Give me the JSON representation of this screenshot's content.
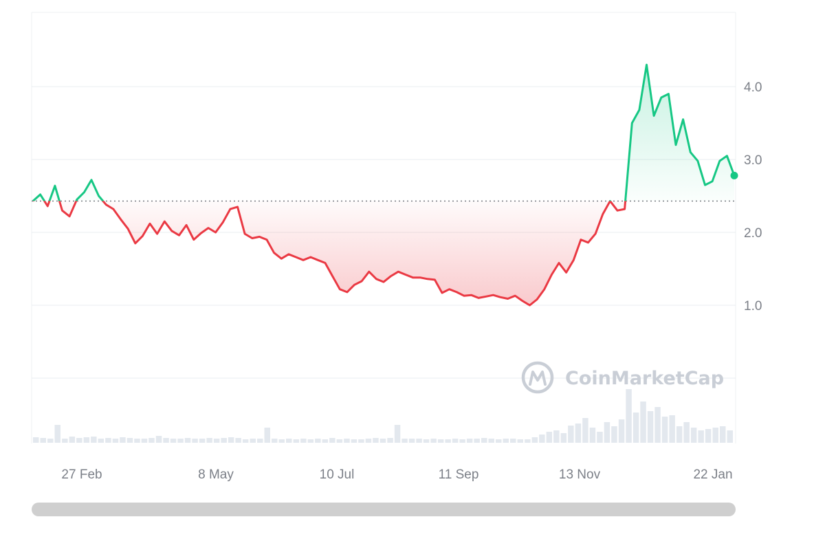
{
  "chart_data": {
    "type": "area",
    "title": "",
    "xlabel": "",
    "ylabel": "",
    "ylim": [
      0,
      5.0
    ],
    "y_ticks": [
      "1.0",
      "2.0",
      "3.0",
      "4.0"
    ],
    "x_ticks": [
      "27 Feb",
      "8 May",
      "10 Jul",
      "11 Sep",
      "13 Nov",
      "22 Jan"
    ],
    "baseline": 2.43,
    "grid": true,
    "legend": "none",
    "colors": {
      "above": "#16c784",
      "below": "#ea3943",
      "baseline": "#6b6f76",
      "volume": "#e3e8ee"
    },
    "series": [
      {
        "values": [
          2.43,
          2.52,
          2.36,
          2.64,
          2.3,
          2.22,
          2.45,
          2.55,
          2.72,
          2.5,
          2.38,
          2.32,
          2.18,
          2.05,
          1.85,
          1.95,
          2.12,
          1.98,
          2.15,
          2.02,
          1.96,
          2.1,
          1.9,
          1.99,
          2.06,
          2.0,
          2.14,
          2.32,
          2.35,
          1.98,
          1.92,
          1.94,
          1.9,
          1.72,
          1.64,
          1.7,
          1.66,
          1.62,
          1.66,
          1.62,
          1.58,
          1.4,
          1.22,
          1.18,
          1.28,
          1.33,
          1.46,
          1.36,
          1.32,
          1.4,
          1.46,
          1.42,
          1.38,
          1.38,
          1.36,
          1.35,
          1.17,
          1.22,
          1.18,
          1.13,
          1.14,
          1.1,
          1.12,
          1.14,
          1.11,
          1.09,
          1.13,
          1.06,
          1.0,
          1.08,
          1.22,
          1.42,
          1.58,
          1.45,
          1.62,
          1.9,
          1.86,
          1.98,
          2.25,
          2.43,
          2.3,
          2.32,
          3.5,
          3.68,
          4.3,
          3.6,
          3.85,
          3.9,
          3.2,
          3.55,
          3.1,
          2.98,
          2.65,
          2.7,
          2.98,
          3.05,
          2.78
        ]
      }
    ],
    "volume": [
      8,
      7,
      6,
      26,
      6,
      9,
      7,
      8,
      9,
      6,
      7,
      6,
      8,
      7,
      6,
      6,
      7,
      10,
      7,
      6,
      6,
      7,
      6,
      6,
      7,
      6,
      7,
      8,
      7,
      5,
      6,
      6,
      22,
      6,
      5,
      6,
      5,
      6,
      5,
      6,
      5,
      7,
      5,
      6,
      5,
      5,
      6,
      7,
      6,
      7,
      26,
      6,
      6,
      6,
      5,
      6,
      5,
      5,
      6,
      5,
      6,
      6,
      7,
      6,
      5,
      6,
      6,
      5,
      5,
      8,
      12,
      16,
      18,
      14,
      25,
      28,
      36,
      22,
      16,
      30,
      24,
      34,
      78,
      44,
      60,
      46,
      52,
      38,
      40,
      24,
      30,
      22,
      18,
      20,
      22,
      24,
      18
    ]
  },
  "watermark": {
    "text": "CoinMarketCap",
    "icon": "coinmarketcap-logo-icon"
  },
  "scrollbar": {
    "value": 1.0
  }
}
